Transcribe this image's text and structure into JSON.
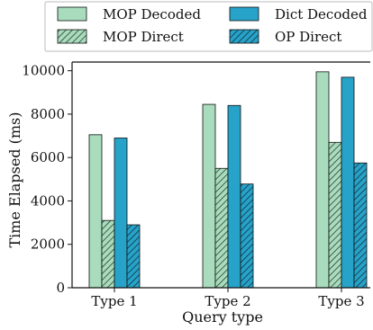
{
  "chart_data": {
    "type": "bar",
    "categories": [
      "Type 1",
      "Type 2",
      "Type 3"
    ],
    "series": [
      {
        "name": "MOP Decoded",
        "values": [
          7050,
          8450,
          9950
        ],
        "color": "#a8dcbc",
        "hatch": false
      },
      {
        "name": "MOP Direct",
        "values": [
          3100,
          5500,
          6700
        ],
        "color": "#a8dcbc",
        "hatch": true
      },
      {
        "name": "Dict Decoded",
        "values": [
          6900,
          8400,
          9700
        ],
        "color": "#27a2c8",
        "hatch": false
      },
      {
        "name": "OP Direct",
        "values": [
          2900,
          4780,
          5750
        ],
        "color": "#27a2c8",
        "hatch": true
      }
    ],
    "xlabel": "Query type",
    "ylabel": "Time Elapsed (ms)",
    "ylim": [
      0,
      10400
    ],
    "yticks": [
      0,
      2000,
      4000,
      6000,
      8000,
      10000
    ],
    "grid": false,
    "legend_position": "top",
    "legend_columns": 2
  }
}
